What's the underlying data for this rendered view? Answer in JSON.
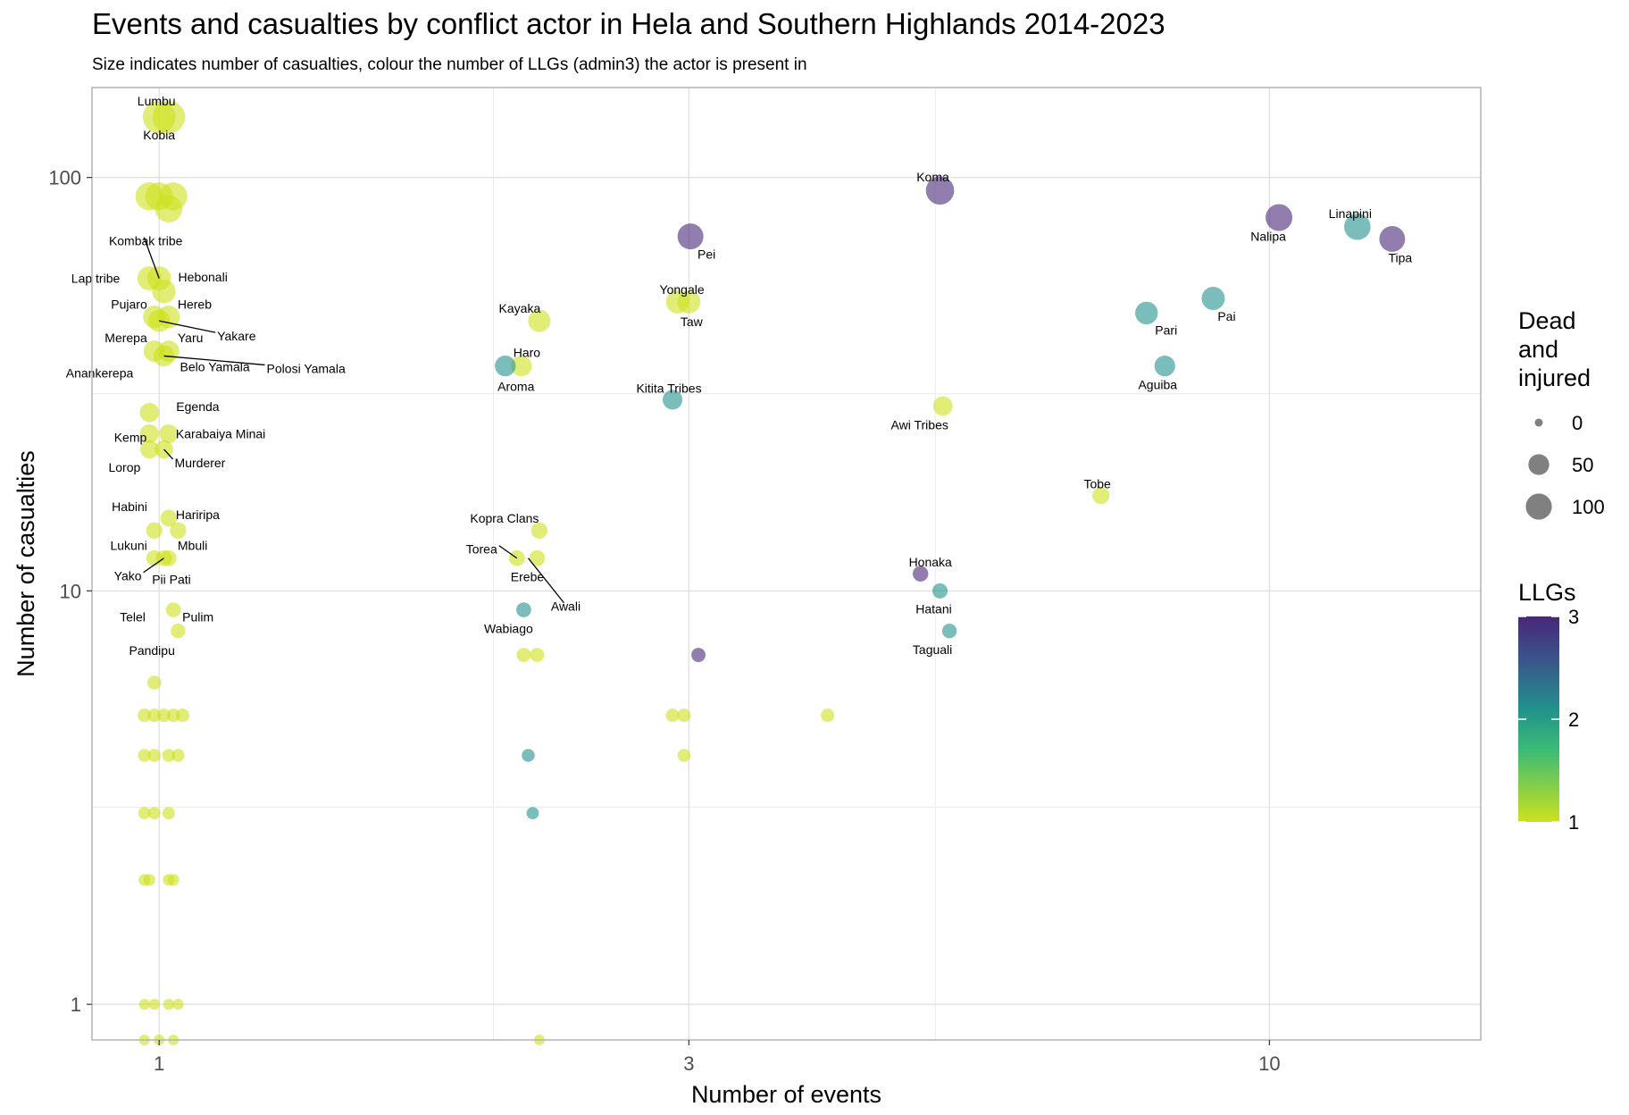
{
  "title": "Events and casualties by conflict actor in Hela and Southern Highlands 2014-2023",
  "subtitle": "Size indicates number of casualties, colour the number of LLGs (admin3) the actor is present in",
  "chart_data": {
    "type": "scatter",
    "title": "Events and casualties by conflict actor in Hela and Southern Highlands 2014-2023",
    "subtitle": "Size indicates number of casualties, colour the number of LLGs (admin3) the actor is present in",
    "xlabel": "Number of events",
    "ylabel": "Number of casualties",
    "x_scale": "log10",
    "y_scale": "log10",
    "xlim": [
      0.87,
      15.5
    ],
    "ylim": [
      0.82,
      165
    ],
    "x_ticks": [
      1,
      3,
      10
    ],
    "x_tick_labels": [
      "1",
      "3",
      "10"
    ],
    "x_minor_ticks": [
      2,
      5
    ],
    "y_ticks": [
      1,
      10,
      100
    ],
    "y_tick_labels": [
      "1",
      "10",
      "100"
    ],
    "y_minor_ticks": [
      3,
      30
    ],
    "grid": true,
    "size_legend": {
      "title": "Dead\nand\ninjured",
      "values": [
        0,
        50,
        100
      ],
      "labels": [
        "0",
        "50",
        "100"
      ]
    },
    "color_legend": {
      "title": "LLGs",
      "range": [
        1,
        3
      ],
      "ticks": [
        1,
        2,
        3
      ],
      "tick_labels": [
        "1",
        "2",
        "3"
      ],
      "colors": [
        "#CDE11D",
        "#20A386",
        "#2D708E",
        "#440154"
      ]
    },
    "points": [
      {
        "name": "Lumbu",
        "x": 1.0,
        "y": 140,
        "llg": 1,
        "label_dx": -3,
        "label_dy": -18,
        "anchor": "middle"
      },
      {
        "name": "",
        "x": 1.02,
        "y": 140,
        "llg": 1
      },
      {
        "name": "Kobia",
        "x": 1.0,
        "y": 140,
        "llg": 1,
        "label_dx": 0,
        "label_dy": 20,
        "anchor": "middle",
        "noPoint": true
      },
      {
        "name": "",
        "x": 0.98,
        "y": 90,
        "llg": 1
      },
      {
        "name": "",
        "x": 1.0,
        "y": 90,
        "llg": 1
      },
      {
        "name": "",
        "x": 1.03,
        "y": 90,
        "llg": 1
      },
      {
        "name": "",
        "x": 1.02,
        "y": 84,
        "llg": 1
      },
      {
        "name": "Kombak tribe",
        "x": 1.0,
        "y": 57,
        "llg": 1,
        "label_dx": -15,
        "label_dy": -42,
        "anchor": "middle",
        "leader": true
      },
      {
        "name": "Lap tribe",
        "x": 0.98,
        "y": 57,
        "llg": 1,
        "label_dx": -33,
        "label_dy": 0,
        "anchor": "end"
      },
      {
        "name": "Hebonali",
        "x": 1.01,
        "y": 53,
        "llg": 1,
        "label_dx": 16,
        "label_dy": -16,
        "anchor": "start"
      },
      {
        "name": "Pujaro",
        "x": 0.99,
        "y": 46,
        "llg": 1,
        "label_dx": -8,
        "label_dy": -14,
        "anchor": "end"
      },
      {
        "name": "Hereb",
        "x": 1.02,
        "y": 46,
        "llg": 1,
        "label_dx": 10,
        "label_dy": -14,
        "anchor": "start"
      },
      {
        "name": "Yakare",
        "x": 1.0,
        "y": 45,
        "llg": 1,
        "label_dx": 65,
        "label_dy": 17,
        "anchor": "start",
        "leader": true
      },
      {
        "name": "Merepa",
        "x": 0.99,
        "y": 38,
        "llg": 1,
        "label_dx": -8,
        "label_dy": -15,
        "anchor": "end"
      },
      {
        "name": "Yaru",
        "x": 1.02,
        "y": 38,
        "llg": 1,
        "label_dx": 10,
        "label_dy": -15,
        "anchor": "start"
      },
      {
        "name": "Polosi Yamala",
        "x": 1.01,
        "y": 37,
        "llg": 1,
        "label_dx": 115,
        "label_dy": 14,
        "anchor": "start",
        "leader": true
      },
      {
        "name": "Belo Yamala",
        "x": 1.01,
        "y": 37,
        "llg": 1,
        "label_dx": 18,
        "label_dy": 12,
        "anchor": "start",
        "noPoint": true
      },
      {
        "name": "Anankerepa",
        "x": 0.98,
        "y": 37,
        "llg": 1,
        "label_dx": -18,
        "label_dy": 19,
        "anchor": "end",
        "noPoint": true
      },
      {
        "name": "Egenda",
        "x": 0.98,
        "y": 27,
        "llg": 1,
        "label_dx": 30,
        "label_dy": -7,
        "anchor": "start"
      },
      {
        "name": "Karabaiya Minai",
        "x": 1.02,
        "y": 24,
        "llg": 1,
        "label_dx": 8,
        "label_dy": 0,
        "anchor": "start"
      },
      {
        "name": "Kemp",
        "x": 0.98,
        "y": 24,
        "llg": 1,
        "label_dx": -3,
        "label_dy": 4,
        "anchor": "end"
      },
      {
        "name": "Murderer",
        "x": 1.01,
        "y": 22,
        "llg": 1,
        "label_dx": 12,
        "label_dy": 15,
        "anchor": "start",
        "leader": true
      },
      {
        "name": "Lorop",
        "x": 0.98,
        "y": 22,
        "llg": 1,
        "label_dx": -10,
        "label_dy": 20,
        "anchor": "end"
      },
      {
        "name": "Habini",
        "x": 1.02,
        "y": 15,
        "llg": 1,
        "label_dx": -24,
        "label_dy": -13,
        "anchor": "end"
      },
      {
        "name": "Hariripa",
        "x": 1.02,
        "y": 15,
        "llg": 1,
        "label_dx": 8,
        "label_dy": -4,
        "anchor": "start",
        "noPoint": true
      },
      {
        "name": "",
        "x": 0.99,
        "y": 14,
        "llg": 1
      },
      {
        "name": "",
        "x": 1.04,
        "y": 14,
        "llg": 1
      },
      {
        "name": "Lukuni",
        "x": 0.99,
        "y": 12,
        "llg": 1,
        "label_dx": -8,
        "label_dy": -14,
        "anchor": "end"
      },
      {
        "name": "Mbuli",
        "x": 1.02,
        "y": 12,
        "llg": 1,
        "label_dx": 10,
        "label_dy": -14,
        "anchor": "start"
      },
      {
        "name": "Yako",
        "x": 1.01,
        "y": 12,
        "llg": 1,
        "label_dx": -25,
        "label_dy": 20,
        "anchor": "end",
        "leader": true
      },
      {
        "name": "Pii Pati",
        "x": 1.0,
        "y": 12,
        "llg": 1,
        "label_dx": -8,
        "label_dy": 24,
        "anchor": "start",
        "noPoint": true
      },
      {
        "name": "",
        "x": 1.03,
        "y": 9,
        "llg": 1
      },
      {
        "name": "Telel",
        "x": 1.02,
        "y": 9,
        "llg": 1,
        "label_dx": -26,
        "label_dy": 8,
        "anchor": "end",
        "noPoint": true
      },
      {
        "name": "Pulim",
        "x": 1.03,
        "y": 9,
        "llg": 1,
        "label_dx": 10,
        "label_dy": 8,
        "anchor": "start",
        "noPoint": true
      },
      {
        "name": "",
        "x": 1.04,
        "y": 8,
        "llg": 1
      },
      {
        "name": "Pandipu",
        "x": 1.0,
        "y": 8,
        "llg": 1,
        "label_dx": -8,
        "label_dy": 22,
        "anchor": "middle",
        "noPoint": true
      },
      {
        "name": "",
        "x": 0.99,
        "y": 6,
        "llg": 1
      },
      {
        "name": "",
        "x": 0.97,
        "y": 5,
        "llg": 1
      },
      {
        "name": "",
        "x": 0.99,
        "y": 5,
        "llg": 1
      },
      {
        "name": "",
        "x": 1.01,
        "y": 5,
        "llg": 1
      },
      {
        "name": "",
        "x": 1.03,
        "y": 5,
        "llg": 1
      },
      {
        "name": "",
        "x": 1.05,
        "y": 5,
        "llg": 1
      },
      {
        "name": "",
        "x": 0.97,
        "y": 4,
        "llg": 1
      },
      {
        "name": "",
        "x": 0.99,
        "y": 4,
        "llg": 1
      },
      {
        "name": "",
        "x": 1.02,
        "y": 4,
        "llg": 1
      },
      {
        "name": "",
        "x": 1.04,
        "y": 4,
        "llg": 1
      },
      {
        "name": "",
        "x": 0.97,
        "y": 2.9,
        "llg": 1
      },
      {
        "name": "",
        "x": 0.99,
        "y": 2.9,
        "llg": 1
      },
      {
        "name": "",
        "x": 1.02,
        "y": 2.9,
        "llg": 1
      },
      {
        "name": "",
        "x": 0.97,
        "y": 2,
        "llg": 1
      },
      {
        "name": "",
        "x": 0.98,
        "y": 2,
        "llg": 1
      },
      {
        "name": "",
        "x": 1.02,
        "y": 2,
        "llg": 1
      },
      {
        "name": "",
        "x": 1.03,
        "y": 2,
        "llg": 1
      },
      {
        "name": "",
        "x": 0.97,
        "y": 1,
        "llg": 1
      },
      {
        "name": "",
        "x": 0.99,
        "y": 1,
        "llg": 1
      },
      {
        "name": "",
        "x": 1.02,
        "y": 1,
        "llg": 1
      },
      {
        "name": "",
        "x": 1.04,
        "y": 1,
        "llg": 1
      },
      {
        "name": "",
        "x": 0.97,
        "y": 0.82,
        "llg": 1
      },
      {
        "name": "",
        "x": 1.0,
        "y": 0.82,
        "llg": 1
      },
      {
        "name": "",
        "x": 1.03,
        "y": 0.82,
        "llg": 1
      },
      {
        "name": "Kayaka",
        "x": 2.2,
        "y": 45,
        "llg": 1,
        "label_dx": -22,
        "label_dy": -14,
        "anchor": "middle"
      },
      {
        "name": "Haro",
        "x": 2.12,
        "y": 35,
        "llg": 1,
        "label_dx": 6,
        "label_dy": -15,
        "anchor": "middle"
      },
      {
        "name": "Aroma",
        "x": 2.05,
        "y": 35,
        "llg": 2,
        "label_dx": 12,
        "label_dy": 23,
        "anchor": "middle"
      },
      {
        "name": "Kopra Clans",
        "x": 2.2,
        "y": 14,
        "llg": 1,
        "label_dx": -39,
        "label_dy": -14,
        "anchor": "middle"
      },
      {
        "name": "Torea",
        "x": 2.1,
        "y": 12,
        "llg": 1,
        "label_dx": -22,
        "label_dy": -10,
        "anchor": "end",
        "leader": true
      },
      {
        "name": "",
        "x": 2.19,
        "y": 12,
        "llg": 1
      },
      {
        "name": "Erebe",
        "x": 2.15,
        "y": 12,
        "llg": 1,
        "label_dx": -1,
        "label_dy": 21,
        "anchor": "middle",
        "noPoint": true
      },
      {
        "name": "Awali",
        "x": 2.15,
        "y": 12,
        "llg": 1,
        "label_dx": 42,
        "label_dy": 54,
        "anchor": "middle",
        "leader": true,
        "noPoint": true
      },
      {
        "name": "Wabiago",
        "x": 2.13,
        "y": 9,
        "llg": 2,
        "label_dx": -17,
        "label_dy": 21,
        "anchor": "middle"
      },
      {
        "name": "",
        "x": 2.13,
        "y": 7,
        "llg": 1
      },
      {
        "name": "",
        "x": 2.19,
        "y": 7,
        "llg": 1
      },
      {
        "name": "",
        "x": 2.15,
        "y": 4,
        "llg": 2
      },
      {
        "name": "",
        "x": 2.17,
        "y": 2.9,
        "llg": 2
      },
      {
        "name": "",
        "x": 2.2,
        "y": 0.82,
        "llg": 1
      },
      {
        "name": "Pei",
        "x": 3.01,
        "y": 72,
        "llg": 3,
        "label_dx": 18,
        "label_dy": 20,
        "anchor": "middle"
      },
      {
        "name": "Yongale",
        "x": 2.93,
        "y": 50,
        "llg": 1,
        "label_dx": 5,
        "label_dy": -14,
        "anchor": "middle"
      },
      {
        "name": "",
        "x": 3.0,
        "y": 50,
        "llg": 1
      },
      {
        "name": "Taw",
        "x": 3.0,
        "y": 50,
        "llg": 1,
        "label_dx": 3,
        "label_dy": 22,
        "anchor": "middle",
        "noPoint": true
      },
      {
        "name": "Kitita Tribes",
        "x": 2.9,
        "y": 29,
        "llg": 2,
        "label_dx": -4,
        "label_dy": -13,
        "anchor": "middle"
      },
      {
        "name": "",
        "x": 3.06,
        "y": 7,
        "llg": 3
      },
      {
        "name": "",
        "x": 2.9,
        "y": 5,
        "llg": 1
      },
      {
        "name": "",
        "x": 2.97,
        "y": 5,
        "llg": 1
      },
      {
        "name": "",
        "x": 4.0,
        "y": 5,
        "llg": 1
      },
      {
        "name": "",
        "x": 2.97,
        "y": 4,
        "llg": 1
      },
      {
        "name": "Koma",
        "x": 5.05,
        "y": 93,
        "llg": 3,
        "label_dx": -8,
        "label_dy": -15,
        "anchor": "middle"
      },
      {
        "name": "Awi Tribes",
        "x": 5.08,
        "y": 28,
        "llg": 1,
        "label_dx": -26,
        "label_dy": 21,
        "anchor": "middle"
      },
      {
        "name": "Honaka",
        "x": 4.85,
        "y": 11,
        "llg": 3,
        "label_dx": 11,
        "label_dy": -13,
        "anchor": "middle"
      },
      {
        "name": "Hatani",
        "x": 5.05,
        "y": 10,
        "llg": 2,
        "label_dx": -7,
        "label_dy": 20,
        "anchor": "middle"
      },
      {
        "name": "Taguali",
        "x": 5.15,
        "y": 8,
        "llg": 2,
        "label_dx": -19,
        "label_dy": 21,
        "anchor": "middle"
      },
      {
        "name": "Tobe",
        "x": 7.05,
        "y": 17,
        "llg": 1,
        "label_dx": -4,
        "label_dy": -13,
        "anchor": "middle"
      },
      {
        "name": "Pari",
        "x": 7.75,
        "y": 47,
        "llg": 2,
        "label_dx": 22,
        "label_dy": 19,
        "anchor": "middle"
      },
      {
        "name": "Aguiba",
        "x": 8.05,
        "y": 35,
        "llg": 2,
        "label_dx": -8,
        "label_dy": 21,
        "anchor": "middle"
      },
      {
        "name": "Pai",
        "x": 8.9,
        "y": 51,
        "llg": 2,
        "label_dx": 15,
        "label_dy": 20,
        "anchor": "middle"
      },
      {
        "name": "Nalipa",
        "x": 10.2,
        "y": 80,
        "llg": 3,
        "label_dx": -12,
        "label_dy": 21,
        "anchor": "middle"
      },
      {
        "name": "Linapini",
        "x": 12.0,
        "y": 76,
        "llg": 2,
        "label_dx": -8,
        "label_dy": -15,
        "anchor": "middle"
      },
      {
        "name": "Tipa",
        "x": 12.9,
        "y": 71,
        "llg": 3,
        "label_dx": 9,
        "label_dy": 21,
        "anchor": "middle"
      }
    ]
  }
}
